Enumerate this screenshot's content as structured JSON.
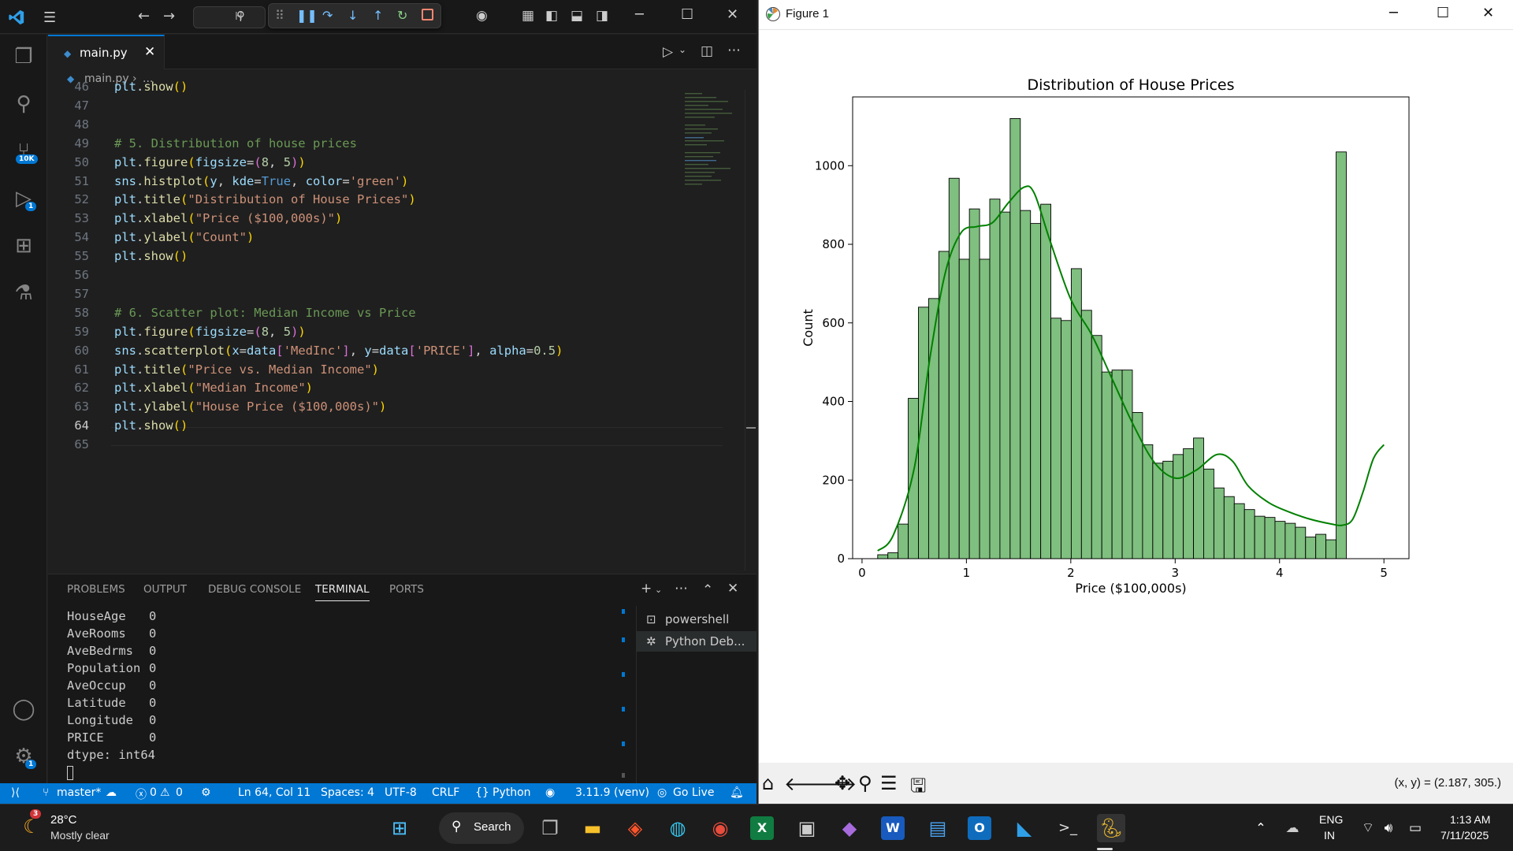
{
  "vscode": {
    "search_placeholder": "H",
    "tab": {
      "label": "main.py",
      "close": "✕"
    },
    "breadcrumb": {
      "file": "main.py",
      "sep": "›",
      "rest": "..."
    },
    "badges": {
      "scm": "10K",
      "debug": "1",
      "settings": "1"
    },
    "code_lines": [
      {
        "n": "46",
        "tokens": [
          [
            "k-var",
            "plt"
          ],
          [
            "k-plain",
            "."
          ],
          [
            "k-fn",
            "show"
          ],
          [
            "k-br",
            "()"
          ]
        ]
      },
      {
        "n": "47",
        "tokens": []
      },
      {
        "n": "48",
        "tokens": []
      },
      {
        "n": "49",
        "tokens": [
          [
            "k-cmt",
            "# 5. Distribution of house prices"
          ]
        ]
      },
      {
        "n": "50",
        "tokens": [
          [
            "k-var",
            "plt"
          ],
          [
            "k-plain",
            "."
          ],
          [
            "k-fn",
            "figure"
          ],
          [
            "k-br",
            "("
          ],
          [
            "k-var",
            "figsize"
          ],
          [
            "k-plain",
            "="
          ],
          [
            "k-br2",
            "("
          ],
          [
            "k-num",
            "8"
          ],
          [
            "k-plain",
            ", "
          ],
          [
            "k-num",
            "5"
          ],
          [
            "k-br2",
            ")"
          ],
          [
            "k-br",
            ")"
          ]
        ]
      },
      {
        "n": "51",
        "tokens": [
          [
            "k-var",
            "sns"
          ],
          [
            "k-plain",
            "."
          ],
          [
            "k-fn",
            "histplot"
          ],
          [
            "k-br",
            "("
          ],
          [
            "k-var",
            "y"
          ],
          [
            "k-plain",
            ", "
          ],
          [
            "k-var",
            "kde"
          ],
          [
            "k-plain",
            "="
          ],
          [
            "k-kw",
            "True"
          ],
          [
            "k-plain",
            ", "
          ],
          [
            "k-var",
            "color"
          ],
          [
            "k-plain",
            "="
          ],
          [
            "k-str",
            "'green'"
          ],
          [
            "k-br",
            ")"
          ]
        ]
      },
      {
        "n": "52",
        "tokens": [
          [
            "k-var",
            "plt"
          ],
          [
            "k-plain",
            "."
          ],
          [
            "k-fn",
            "title"
          ],
          [
            "k-br",
            "("
          ],
          [
            "k-str",
            "\"Distribution of House Prices\""
          ],
          [
            "k-br",
            ")"
          ]
        ]
      },
      {
        "n": "53",
        "tokens": [
          [
            "k-var",
            "plt"
          ],
          [
            "k-plain",
            "."
          ],
          [
            "k-fn",
            "xlabel"
          ],
          [
            "k-br",
            "("
          ],
          [
            "k-str",
            "\"Price ($100,000s)\""
          ],
          [
            "k-br",
            ")"
          ]
        ]
      },
      {
        "n": "54",
        "tokens": [
          [
            "k-var",
            "plt"
          ],
          [
            "k-plain",
            "."
          ],
          [
            "k-fn",
            "ylabel"
          ],
          [
            "k-br",
            "("
          ],
          [
            "k-str",
            "\"Count\""
          ],
          [
            "k-br",
            ")"
          ]
        ]
      },
      {
        "n": "55",
        "tokens": [
          [
            "k-var",
            "plt"
          ],
          [
            "k-plain",
            "."
          ],
          [
            "k-fn",
            "show"
          ],
          [
            "k-br",
            "()"
          ]
        ]
      },
      {
        "n": "56",
        "tokens": []
      },
      {
        "n": "57",
        "tokens": []
      },
      {
        "n": "58",
        "tokens": [
          [
            "k-cmt",
            "# 6. Scatter plot: Median Income vs Price"
          ]
        ]
      },
      {
        "n": "59",
        "tokens": [
          [
            "k-var",
            "plt"
          ],
          [
            "k-plain",
            "."
          ],
          [
            "k-fn",
            "figure"
          ],
          [
            "k-br",
            "("
          ],
          [
            "k-var",
            "figsize"
          ],
          [
            "k-plain",
            "="
          ],
          [
            "k-br2",
            "("
          ],
          [
            "k-num",
            "8"
          ],
          [
            "k-plain",
            ", "
          ],
          [
            "k-num",
            "5"
          ],
          [
            "k-br2",
            ")"
          ],
          [
            "k-br",
            ")"
          ]
        ]
      },
      {
        "n": "60",
        "tokens": [
          [
            "k-var",
            "sns"
          ],
          [
            "k-plain",
            "."
          ],
          [
            "k-fn",
            "scatterplot"
          ],
          [
            "k-br",
            "("
          ],
          [
            "k-var",
            "x"
          ],
          [
            "k-plain",
            "="
          ],
          [
            "k-var",
            "data"
          ],
          [
            "k-br2",
            "["
          ],
          [
            "k-str",
            "'MedInc'"
          ],
          [
            "k-br2",
            "]"
          ],
          [
            "k-plain",
            ", "
          ],
          [
            "k-var",
            "y"
          ],
          [
            "k-plain",
            "="
          ],
          [
            "k-var",
            "data"
          ],
          [
            "k-br2",
            "["
          ],
          [
            "k-str",
            "'PRICE'"
          ],
          [
            "k-br2",
            "]"
          ],
          [
            "k-plain",
            ", "
          ],
          [
            "k-var",
            "alpha"
          ],
          [
            "k-plain",
            "="
          ],
          [
            "k-num",
            "0.5"
          ],
          [
            "k-br",
            ")"
          ]
        ]
      },
      {
        "n": "61",
        "tokens": [
          [
            "k-var",
            "plt"
          ],
          [
            "k-plain",
            "."
          ],
          [
            "k-fn",
            "title"
          ],
          [
            "k-br",
            "("
          ],
          [
            "k-str",
            "\"Price vs. Median Income\""
          ],
          [
            "k-br",
            ")"
          ]
        ]
      },
      {
        "n": "62",
        "tokens": [
          [
            "k-var",
            "plt"
          ],
          [
            "k-plain",
            "."
          ],
          [
            "k-fn",
            "xlabel"
          ],
          [
            "k-br",
            "("
          ],
          [
            "k-str",
            "\"Median Income\""
          ],
          [
            "k-br",
            ")"
          ]
        ]
      },
      {
        "n": "63",
        "tokens": [
          [
            "k-var",
            "plt"
          ],
          [
            "k-plain",
            "."
          ],
          [
            "k-fn",
            "ylabel"
          ],
          [
            "k-br",
            "("
          ],
          [
            "k-str",
            "\"House Price ($100,000s)\""
          ],
          [
            "k-br",
            ")"
          ]
        ]
      },
      {
        "n": "64",
        "tokens": [
          [
            "k-var",
            "plt"
          ],
          [
            "k-plain",
            "."
          ],
          [
            "k-fn",
            "show"
          ],
          [
            "k-br",
            "()"
          ]
        ]
      },
      {
        "n": "65",
        "tokens": []
      }
    ],
    "panel": {
      "tabs": [
        "PROBLEMS",
        "OUTPUT",
        "DEBUG CONSOLE",
        "TERMINAL",
        "PORTS"
      ],
      "terminal_rows": [
        [
          "HouseAge",
          "0"
        ],
        [
          "AveRooms",
          "0"
        ],
        [
          "AveBedrms",
          "0"
        ],
        [
          "Population",
          "0"
        ],
        [
          "AveOccup",
          "0"
        ],
        [
          "Latitude",
          "0"
        ],
        [
          "Longitude",
          "0"
        ],
        [
          "PRICE",
          "0"
        ]
      ],
      "dtype_line": "dtype: int64",
      "terminals": [
        "powershell",
        "Python Deb..."
      ]
    },
    "status": {
      "branch": "master*",
      "errors": "0",
      "warnings": "0",
      "position": "Ln 64, Col 11",
      "spaces": "Spaces: 4",
      "encoding": "UTF-8",
      "eol": "CRLF",
      "language": "Python",
      "interpreter": "3.11.9 (venv)",
      "golive": "Go Live"
    }
  },
  "figure": {
    "window_title": "Figure 1",
    "coords": "(x, y) = (2.187, 305.)",
    "bar_color": "#7fbf7f",
    "line_color": "#008000"
  },
  "chart_data": {
    "type": "bar",
    "title": "Distribution of House Prices",
    "xlabel": "Price ($100,000s)",
    "ylabel": "Count",
    "xlim": [
      -0.09,
      5.24
    ],
    "ylim": [
      0,
      1175
    ],
    "xticks": [
      "0",
      "1",
      "2",
      "3",
      "4",
      "5"
    ],
    "yticks": [
      "0",
      "200",
      "400",
      "600",
      "800",
      "1000"
    ],
    "bin_start": 0.15,
    "bin_width": 0.0976,
    "counts": [
      10,
      15,
      88,
      408,
      640,
      662,
      782,
      968,
      762,
      890,
      762,
      915,
      882,
      1120,
      886,
      853,
      902,
      612,
      606,
      738,
      632,
      568,
      475,
      480,
      480,
      372,
      290,
      243,
      248,
      265,
      280,
      307,
      228,
      180,
      158,
      140,
      125,
      108,
      105,
      95,
      90,
      80,
      55,
      62,
      48,
      1035
    ],
    "kde": {
      "x": [
        0.15,
        0.3,
        0.5,
        0.65,
        0.8,
        0.95,
        1.1,
        1.25,
        1.4,
        1.55,
        1.65,
        1.8,
        2.0,
        2.2,
        2.4,
        2.6,
        2.8,
        3.0,
        3.2,
        3.4,
        3.55,
        3.7,
        3.9,
        4.1,
        4.3,
        4.5,
        4.6,
        4.7,
        4.8,
        4.9,
        5.0
      ],
      "y": [
        20,
        60,
        230,
        510,
        730,
        830,
        845,
        855,
        905,
        945,
        930,
        810,
        660,
        570,
        455,
        340,
        245,
        205,
        225,
        265,
        248,
        185,
        142,
        118,
        100,
        88,
        85,
        100,
        170,
        255,
        290
      ]
    }
  },
  "taskbar": {
    "weather_temp": "28°C",
    "weather_desc": "Mostly clear",
    "weather_badge": "3",
    "search": "Search",
    "lang_line1": "ENG",
    "lang_line2": "IN",
    "time": "1:13 AM",
    "date": "7/11/2025"
  }
}
